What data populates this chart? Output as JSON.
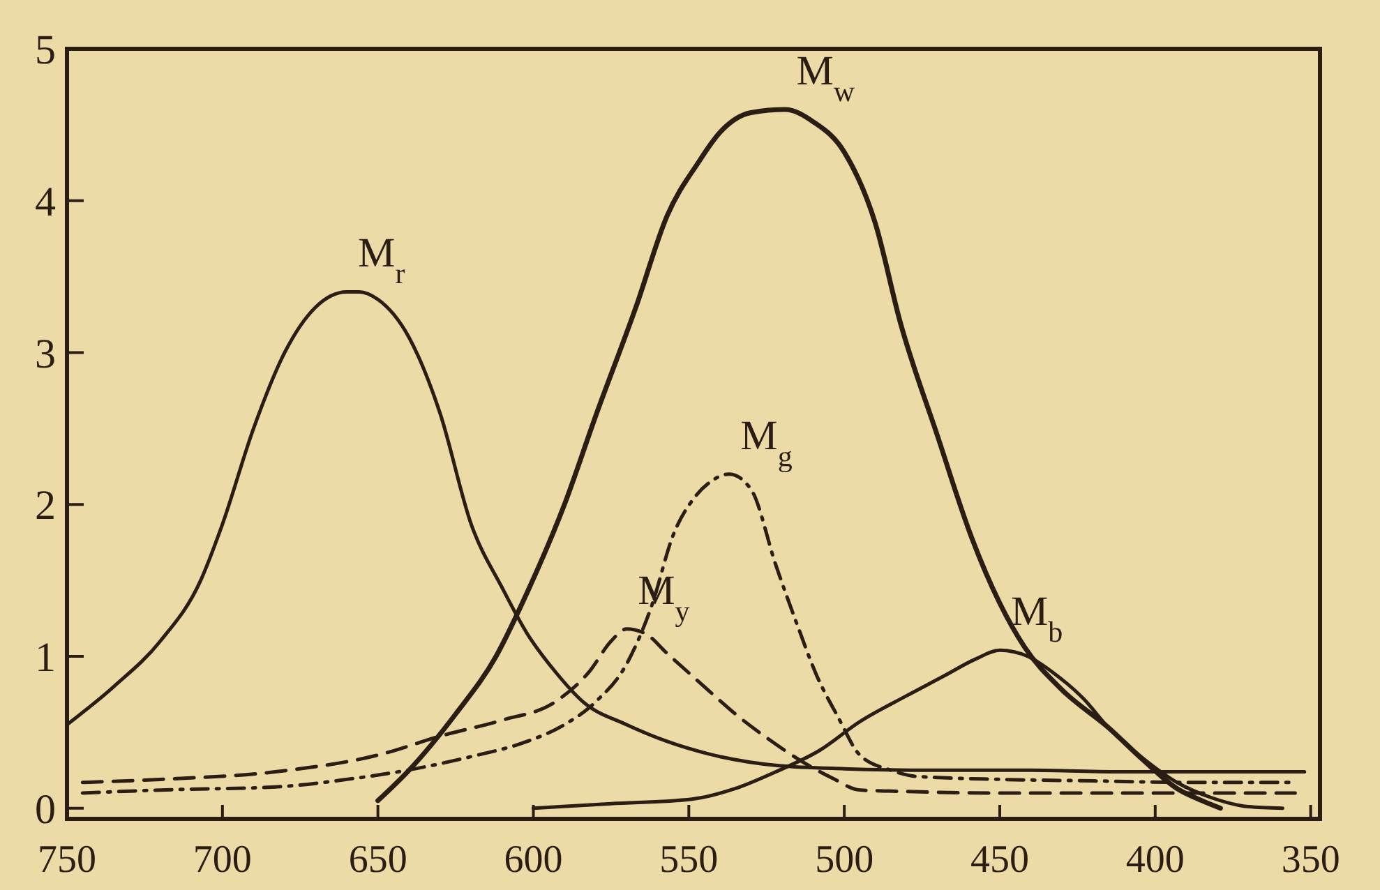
{
  "chart_data": {
    "type": "line",
    "xlim": [
      750,
      347
    ],
    "ylim": [
      -0.07,
      5
    ],
    "xticks": [
      750,
      700,
      650,
      600,
      550,
      500,
      450,
      400,
      350
    ],
    "yticks": [
      0,
      1,
      2,
      3,
      4,
      5
    ],
    "grid": false,
    "marker": "none",
    "series": [
      {
        "name": "M$_{r}$",
        "color": "#2a1e14",
        "line_style": "solid",
        "x": [
          750,
          735,
          720,
          707,
          700,
          690,
          680,
          670,
          660,
          656,
          650,
          640,
          630,
          620,
          610,
          602,
          593,
          584,
          570,
          557,
          540,
          521,
          500,
          470,
          440,
          410,
          380,
          352
        ],
        "values": [
          0.55,
          0.8,
          1.1,
          1.5,
          1.87,
          2.5,
          3.0,
          3.3,
          3.4,
          3.4,
          3.35,
          3.1,
          2.6,
          1.87,
          1.45,
          1.15,
          0.9,
          0.7,
          0.55,
          0.44,
          0.34,
          0.28,
          0.26,
          0.25,
          0.25,
          0.24,
          0.24,
          0.24
        ]
      },
      {
        "name": "M$_{w}$",
        "color": "#2a1e14",
        "line_style": "solid",
        "x": [
          650,
          640,
          625,
          612,
          602,
          590,
          580,
          567,
          557,
          547,
          540,
          530,
          519,
          510,
          500,
          490,
          482,
          470,
          459,
          450,
          442,
          430,
          415,
          404,
          393,
          385,
          379
        ],
        "values": [
          0.05,
          0.25,
          0.62,
          1.0,
          1.42,
          2.0,
          2.58,
          3.3,
          3.9,
          4.25,
          4.45,
          4.58,
          4.6,
          4.52,
          4.32,
          3.85,
          3.2,
          2.45,
          1.78,
          1.35,
          1.06,
          0.78,
          0.53,
          0.32,
          0.13,
          0.05,
          0.0
        ]
      },
      {
        "name": "M$_{g}$",
        "color": "#2a1e14",
        "line_style": "dashdot",
        "x": [
          745,
          720,
          683,
          660,
          638,
          620,
          602,
          590,
          580,
          570,
          562,
          555,
          548,
          543,
          537,
          530,
          522,
          515,
          509,
          502,
          495,
          485,
          477,
          450,
          420,
          390,
          357
        ],
        "values": [
          0.1,
          0.12,
          0.14,
          0.19,
          0.26,
          0.34,
          0.44,
          0.55,
          0.7,
          0.95,
          1.33,
          1.8,
          2.05,
          2.15,
          2.2,
          2.1,
          1.6,
          1.2,
          0.88,
          0.6,
          0.35,
          0.25,
          0.21,
          0.19,
          0.18,
          0.17,
          0.17
        ]
      },
      {
        "name": "M$_{y}$",
        "color": "#2a1e14",
        "line_style": "dashed",
        "x": [
          745,
          720,
          683,
          650,
          629,
          610,
          593,
          582,
          575,
          570,
          564,
          557,
          545,
          535,
          524,
          513,
          504,
          495,
          480,
          450,
          420,
          390,
          355
        ],
        "values": [
          0.17,
          0.19,
          0.24,
          0.35,
          0.48,
          0.58,
          0.7,
          0.9,
          1.1,
          1.18,
          1.15,
          1.02,
          0.8,
          0.62,
          0.45,
          0.3,
          0.2,
          0.12,
          0.11,
          0.1,
          0.1,
          0.1,
          0.1
        ]
      },
      {
        "name": "M$_{b}$",
        "color": "#2a1e14",
        "line_style": "solid",
        "x": [
          600,
          575,
          549,
          535,
          522,
          508,
          495,
          480,
          468,
          458,
          450,
          441,
          432,
          423,
          415,
          404,
          393,
          382,
          370,
          359
        ],
        "values": [
          0.0,
          0.03,
          0.06,
          0.13,
          0.24,
          0.38,
          0.57,
          0.74,
          0.87,
          0.98,
          1.04,
          1.0,
          0.88,
          0.72,
          0.53,
          0.33,
          0.17,
          0.07,
          0.01,
          0.0
        ]
      }
    ]
  }
}
